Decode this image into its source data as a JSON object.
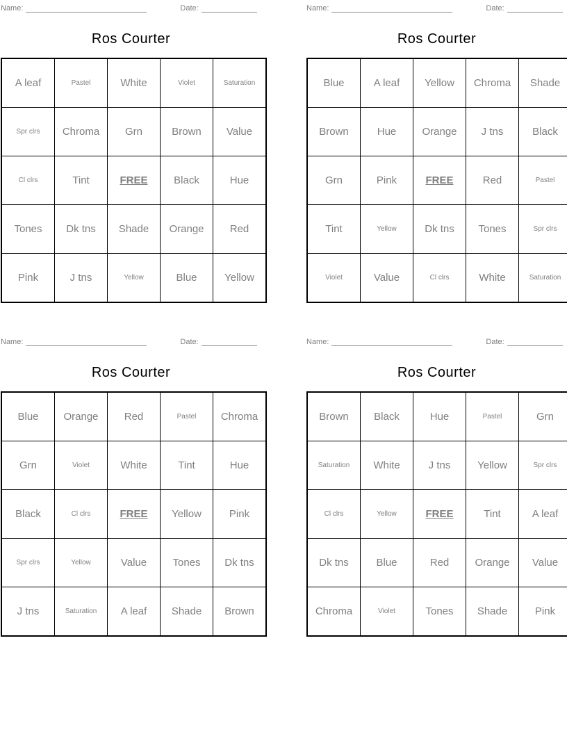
{
  "page": {
    "name_label": "Name:",
    "date_label": "Date:"
  },
  "colors": {
    "title_text": "#000000",
    "cell_text": "#7f7f7f",
    "header_text": "#7f7f7f",
    "grid_border": "#000000"
  },
  "cards": [
    {
      "title": "Ros Courter",
      "grid": [
        [
          {
            "t": "A leaf",
            "s": "lg"
          },
          {
            "t": "Pastel",
            "s": "sm"
          },
          {
            "t": "White",
            "s": "lg"
          },
          {
            "t": "Violet",
            "s": "sm"
          },
          {
            "t": "Saturation",
            "s": "sm"
          }
        ],
        [
          {
            "t": "Spr clrs",
            "s": "sm"
          },
          {
            "t": "Chroma",
            "s": "lg"
          },
          {
            "t": "Grn",
            "s": "lg"
          },
          {
            "t": "Brown",
            "s": "lg"
          },
          {
            "t": "Value",
            "s": "lg"
          }
        ],
        [
          {
            "t": "Cl clrs",
            "s": "sm"
          },
          {
            "t": "Tint",
            "s": "lg"
          },
          {
            "t": "FREE",
            "s": "free"
          },
          {
            "t": "Black",
            "s": "lg"
          },
          {
            "t": "Hue",
            "s": "lg"
          }
        ],
        [
          {
            "t": "Tones",
            "s": "lg"
          },
          {
            "t": "Dk tns",
            "s": "lg"
          },
          {
            "t": "Shade",
            "s": "lg"
          },
          {
            "t": "Orange",
            "s": "lg"
          },
          {
            "t": "Red",
            "s": "lg"
          }
        ],
        [
          {
            "t": "Pink",
            "s": "lg"
          },
          {
            "t": "J tns",
            "s": "lg"
          },
          {
            "t": "Yellow",
            "s": "sm"
          },
          {
            "t": "Blue",
            "s": "lg"
          },
          {
            "t": "Yellow",
            "s": "lg"
          }
        ]
      ]
    },
    {
      "title": "Ros Courter",
      "grid": [
        [
          {
            "t": "Blue",
            "s": "lg"
          },
          {
            "t": "A leaf",
            "s": "lg"
          },
          {
            "t": "Yellow",
            "s": "lg"
          },
          {
            "t": "Chroma",
            "s": "lg"
          },
          {
            "t": "Shade",
            "s": "lg"
          }
        ],
        [
          {
            "t": "Brown",
            "s": "lg"
          },
          {
            "t": "Hue",
            "s": "lg"
          },
          {
            "t": "Orange",
            "s": "lg"
          },
          {
            "t": "J tns",
            "s": "lg"
          },
          {
            "t": "Black",
            "s": "lg"
          }
        ],
        [
          {
            "t": "Grn",
            "s": "lg"
          },
          {
            "t": "Pink",
            "s": "lg"
          },
          {
            "t": "FREE",
            "s": "free"
          },
          {
            "t": "Red",
            "s": "lg"
          },
          {
            "t": "Pastel",
            "s": "sm"
          }
        ],
        [
          {
            "t": "Tint",
            "s": "lg"
          },
          {
            "t": "Yellow",
            "s": "sm"
          },
          {
            "t": "Dk tns",
            "s": "lg"
          },
          {
            "t": "Tones",
            "s": "lg"
          },
          {
            "t": "Spr clrs",
            "s": "sm"
          }
        ],
        [
          {
            "t": "Violet",
            "s": "sm"
          },
          {
            "t": "Value",
            "s": "lg"
          },
          {
            "t": "Cl clrs",
            "s": "sm"
          },
          {
            "t": "White",
            "s": "lg"
          },
          {
            "t": "Saturation",
            "s": "sm"
          }
        ]
      ]
    },
    {
      "title": "Ros Courter",
      "grid": [
        [
          {
            "t": "Blue",
            "s": "lg"
          },
          {
            "t": "Orange",
            "s": "lg"
          },
          {
            "t": "Red",
            "s": "lg"
          },
          {
            "t": "Pastel",
            "s": "sm"
          },
          {
            "t": "Chroma",
            "s": "lg"
          }
        ],
        [
          {
            "t": "Grn",
            "s": "lg"
          },
          {
            "t": "Violet",
            "s": "sm"
          },
          {
            "t": "White",
            "s": "lg"
          },
          {
            "t": "Tint",
            "s": "lg"
          },
          {
            "t": "Hue",
            "s": "lg"
          }
        ],
        [
          {
            "t": "Black",
            "s": "lg"
          },
          {
            "t": "Cl clrs",
            "s": "sm"
          },
          {
            "t": "FREE",
            "s": "free"
          },
          {
            "t": "Yellow",
            "s": "lg"
          },
          {
            "t": "Pink",
            "s": "lg"
          }
        ],
        [
          {
            "t": "Spr clrs",
            "s": "sm"
          },
          {
            "t": "Yellow",
            "s": "sm"
          },
          {
            "t": "Value",
            "s": "lg"
          },
          {
            "t": "Tones",
            "s": "lg"
          },
          {
            "t": "Dk tns",
            "s": "lg"
          }
        ],
        [
          {
            "t": "J tns",
            "s": "lg"
          },
          {
            "t": "Saturation",
            "s": "sm"
          },
          {
            "t": "A leaf",
            "s": "lg"
          },
          {
            "t": "Shade",
            "s": "lg"
          },
          {
            "t": "Brown",
            "s": "lg"
          }
        ]
      ]
    },
    {
      "title": "Ros Courter",
      "grid": [
        [
          {
            "t": "Brown",
            "s": "lg"
          },
          {
            "t": "Black",
            "s": "lg"
          },
          {
            "t": "Hue",
            "s": "lg"
          },
          {
            "t": "Pastel",
            "s": "sm"
          },
          {
            "t": "Grn",
            "s": "lg"
          }
        ],
        [
          {
            "t": "Saturation",
            "s": "sm"
          },
          {
            "t": "White",
            "s": "lg"
          },
          {
            "t": "J tns",
            "s": "lg"
          },
          {
            "t": "Yellow",
            "s": "lg"
          },
          {
            "t": "Spr clrs",
            "s": "sm"
          }
        ],
        [
          {
            "t": "Cl clrs",
            "s": "sm"
          },
          {
            "t": "Yellow",
            "s": "sm"
          },
          {
            "t": "FREE",
            "s": "free"
          },
          {
            "t": "Tint",
            "s": "lg"
          },
          {
            "t": "A leaf",
            "s": "lg"
          }
        ],
        [
          {
            "t": "Dk tns",
            "s": "lg"
          },
          {
            "t": "Blue",
            "s": "lg"
          },
          {
            "t": "Red",
            "s": "lg"
          },
          {
            "t": "Orange",
            "s": "lg"
          },
          {
            "t": "Value",
            "s": "lg"
          }
        ],
        [
          {
            "t": "Chroma",
            "s": "lg"
          },
          {
            "t": "Violet",
            "s": "sm"
          },
          {
            "t": "Tones",
            "s": "lg"
          },
          {
            "t": "Shade",
            "s": "lg"
          },
          {
            "t": "Pink",
            "s": "lg"
          }
        ]
      ]
    }
  ]
}
